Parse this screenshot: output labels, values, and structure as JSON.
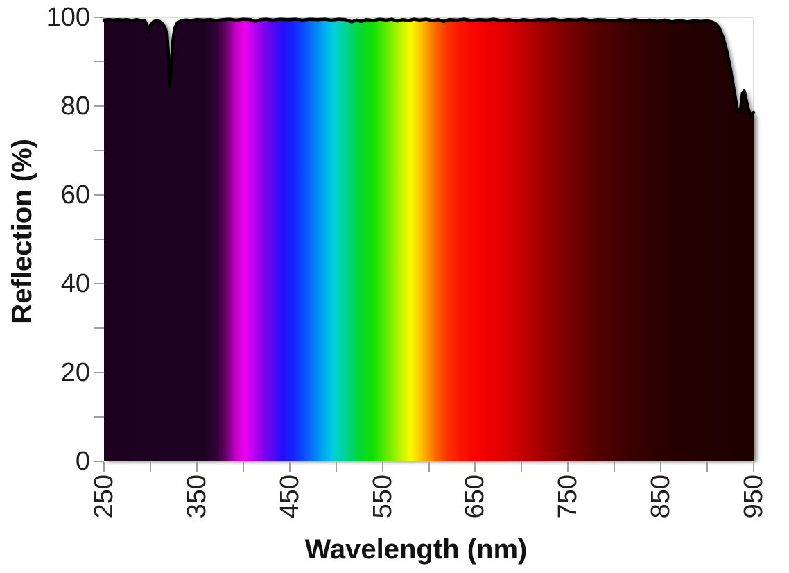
{
  "chart_data": {
    "type": "area",
    "title": "",
    "xlabel": "Wavelength (nm)",
    "ylabel": "Reflection (%)",
    "xlim": [
      250,
      950
    ],
    "ylim": [
      0,
      100
    ],
    "x_major_ticks": [
      250,
      350,
      450,
      550,
      650,
      750,
      850,
      950
    ],
    "x_minor_step": 50,
    "y_major_ticks": [
      0,
      20,
      40,
      60,
      80,
      100
    ],
    "y_minor_step": 10,
    "grid": false,
    "legend": "none",
    "line_color": "#000000",
    "line_width": 4.5,
    "axis_tick_color": "#9d9d9d",
    "plot_border_color": "#d9d9d9",
    "series": [
      {
        "name": "Reflection",
        "points": [
          [
            250,
            99.4
          ],
          [
            255,
            99.5
          ],
          [
            260,
            99.4
          ],
          [
            265,
            99.5
          ],
          [
            270,
            99.4
          ],
          [
            275,
            99.5
          ],
          [
            280,
            99.3
          ],
          [
            285,
            99.5
          ],
          [
            290,
            99.3
          ],
          [
            294,
            99.2
          ],
          [
            296,
            98.4
          ],
          [
            298,
            96.9
          ],
          [
            300,
            98.2
          ],
          [
            303,
            99.0
          ],
          [
            306,
            99.3
          ],
          [
            310,
            99.1
          ],
          [
            313,
            98.6
          ],
          [
            316,
            97.6
          ],
          [
            318,
            96.2
          ],
          [
            320,
            90.0
          ],
          [
            321,
            84.5
          ],
          [
            322,
            87.5
          ],
          [
            324,
            94.5
          ],
          [
            326,
            97.5
          ],
          [
            329,
            98.8
          ],
          [
            333,
            99.2
          ],
          [
            338,
            99.4
          ],
          [
            344,
            99.3
          ],
          [
            350,
            99.5
          ],
          [
            357,
            99.4
          ],
          [
            364,
            99.5
          ],
          [
            371,
            99.3
          ],
          [
            378,
            99.5
          ],
          [
            385,
            99.6
          ],
          [
            392,
            99.4
          ],
          [
            400,
            99.6
          ],
          [
            408,
            99.5
          ],
          [
            413,
            99.1
          ],
          [
            418,
            99.5
          ],
          [
            425,
            99.6
          ],
          [
            432,
            99.4
          ],
          [
            440,
            99.6
          ],
          [
            448,
            99.5
          ],
          [
            456,
            99.6
          ],
          [
            464,
            99.4
          ],
          [
            472,
            99.6
          ],
          [
            480,
            99.5
          ],
          [
            488,
            99.6
          ],
          [
            495,
            99.4
          ],
          [
            503,
            99.6
          ],
          [
            510,
            99.5
          ],
          [
            517,
            99.0
          ],
          [
            522,
            99.4
          ],
          [
            527,
            99.1
          ],
          [
            533,
            99.5
          ],
          [
            540,
            99.3
          ],
          [
            547,
            99.6
          ],
          [
            554,
            99.4
          ],
          [
            560,
            99.6
          ],
          [
            566,
            99.2
          ],
          [
            572,
            99.5
          ],
          [
            578,
            99.3
          ],
          [
            584,
            99.6
          ],
          [
            590,
            99.4
          ],
          [
            597,
            99.6
          ],
          [
            604,
            99.3
          ],
          [
            610,
            99.5
          ],
          [
            616,
            99.1
          ],
          [
            622,
            99.5
          ],
          [
            630,
            99.4
          ],
          [
            638,
            99.6
          ],
          [
            646,
            99.3
          ],
          [
            654,
            99.5
          ],
          [
            662,
            99.4
          ],
          [
            670,
            99.6
          ],
          [
            678,
            99.3
          ],
          [
            686,
            99.5
          ],
          [
            694,
            99.2
          ],
          [
            702,
            99.5
          ],
          [
            710,
            99.3
          ],
          [
            718,
            99.5
          ],
          [
            726,
            99.4
          ],
          [
            734,
            99.6
          ],
          [
            742,
            99.3
          ],
          [
            750,
            99.5
          ],
          [
            758,
            99.4
          ],
          [
            766,
            99.6
          ],
          [
            774,
            99.3
          ],
          [
            782,
            99.5
          ],
          [
            790,
            99.4
          ],
          [
            798,
            99.2
          ],
          [
            806,
            99.5
          ],
          [
            814,
            99.3
          ],
          [
            822,
            99.5
          ],
          [
            830,
            99.2
          ],
          [
            838,
            99.4
          ],
          [
            846,
            99.1
          ],
          [
            854,
            99.4
          ],
          [
            862,
            99.0
          ],
          [
            870,
            99.3
          ],
          [
            878,
            99.0
          ],
          [
            886,
            99.2
          ],
          [
            893,
            99.1
          ],
          [
            900,
            99.2
          ],
          [
            905,
            99.0
          ],
          [
            909,
            98.6
          ],
          [
            913,
            97.6
          ],
          [
            917,
            95.5
          ],
          [
            921,
            92.5
          ],
          [
            925,
            88.5
          ],
          [
            929,
            83.5
          ],
          [
            932,
            79.8
          ],
          [
            934,
            78.7
          ],
          [
            936,
            79.5
          ],
          [
            938,
            83.0
          ],
          [
            940,
            83.4
          ],
          [
            942,
            81.5
          ],
          [
            944,
            79.6
          ],
          [
            946,
            78.4
          ],
          [
            948,
            77.9
          ],
          [
            950,
            78.6
          ]
        ]
      }
    ],
    "fill": {
      "type": "wavelength-spectrum-gradient",
      "stops": [
        [
          250,
          "#1d0220"
        ],
        [
          358,
          "#1e0222"
        ],
        [
          372,
          "#33023a"
        ],
        [
          382,
          "#6c016f"
        ],
        [
          392,
          "#c400c8"
        ],
        [
          401,
          "#ef00ef"
        ],
        [
          410,
          "#c303f2"
        ],
        [
          419,
          "#9101ec"
        ],
        [
          430,
          "#5c08f0"
        ],
        [
          443,
          "#2210fa"
        ],
        [
          455,
          "#1427fd"
        ],
        [
          468,
          "#0a57fb"
        ],
        [
          480,
          "#028cf5"
        ],
        [
          490,
          "#00b6ee"
        ],
        [
          498,
          "#00d2d6"
        ],
        [
          507,
          "#00d3a5"
        ],
        [
          517,
          "#00d465"
        ],
        [
          528,
          "#06d728"
        ],
        [
          540,
          "#15df04"
        ],
        [
          552,
          "#52e800"
        ],
        [
          562,
          "#8eef00"
        ],
        [
          571,
          "#c6f500"
        ],
        [
          580,
          "#f8fa00"
        ],
        [
          589,
          "#fdd200"
        ],
        [
          598,
          "#fd9d00"
        ],
        [
          608,
          "#fd6400"
        ],
        [
          620,
          "#fc3300"
        ],
        [
          634,
          "#fb1400"
        ],
        [
          650,
          "#f80400"
        ],
        [
          668,
          "#ec0000"
        ],
        [
          690,
          "#d30000"
        ],
        [
          715,
          "#ad0000"
        ],
        [
          745,
          "#7f0000"
        ],
        [
          780,
          "#560000"
        ],
        [
          820,
          "#380000"
        ],
        [
          860,
          "#270000"
        ],
        [
          900,
          "#210000"
        ],
        [
          950,
          "#1e0000"
        ]
      ]
    }
  }
}
